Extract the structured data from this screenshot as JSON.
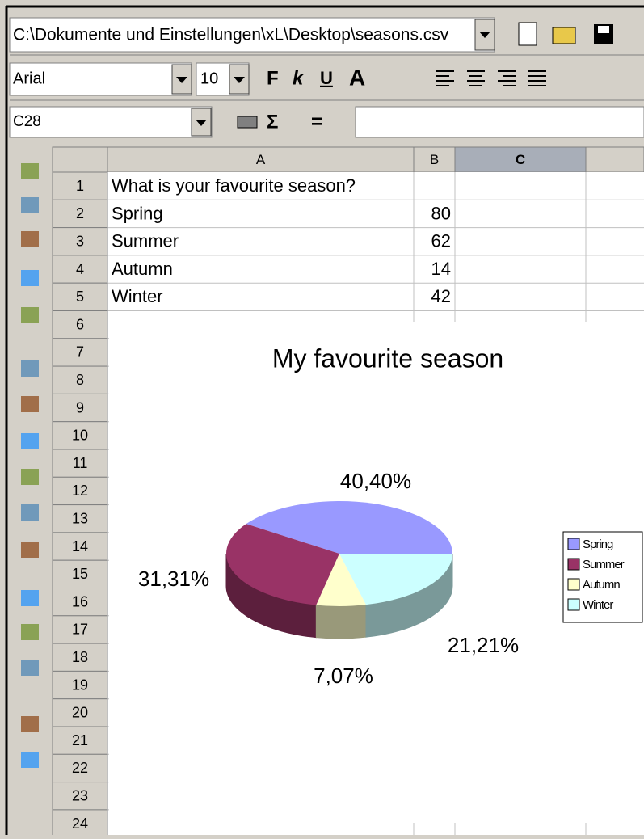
{
  "toolbar": {
    "file_path": "C:\\Dokumente und Einstellungen\\xL\\Desktop\\seasons.csv",
    "font_name": "Arial",
    "font_size": "10",
    "bold": "F",
    "italic": "k",
    "underline": "U",
    "cell_ref": "C28",
    "sum": "Σ",
    "equals": "="
  },
  "sheet": {
    "columns": [
      "A",
      "B",
      "C"
    ],
    "row_numbers": [
      1,
      2,
      3,
      4,
      5,
      6,
      7,
      8,
      9,
      10,
      11,
      12,
      13,
      14,
      15,
      16,
      17,
      18,
      19,
      20,
      21,
      22,
      23,
      24
    ],
    "rows": [
      {
        "A": "What is your favourite season?"
      },
      {
        "A": "Spring",
        "B": 80
      },
      {
        "A": "Summer",
        "B": 62
      },
      {
        "A": "Autumn",
        "B": 14
      },
      {
        "A": "Winter",
        "B": 42
      }
    ]
  },
  "chart_data": {
    "type": "pie",
    "title": "My favourite season",
    "categories": [
      "Spring",
      "Summer",
      "Autumn",
      "Winter"
    ],
    "values": [
      40.4,
      31.31,
      7.07,
      21.21
    ],
    "value_labels": [
      "40,40%",
      "31,31%",
      "7,07%",
      "21,21%"
    ],
    "colors": [
      "#9999ff",
      "#993366",
      "#ffffcc",
      "#ccffff"
    ],
    "legend": "right"
  }
}
